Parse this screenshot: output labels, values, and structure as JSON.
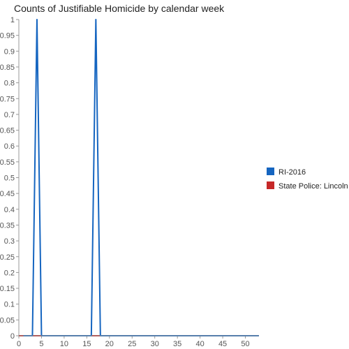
{
  "chart_data": {
    "type": "line",
    "title": "Counts of Justifiable Homicide by calendar week",
    "xlabel": "",
    "ylabel": "",
    "xlim": [
      0,
      53
    ],
    "ylim": [
      0,
      1
    ],
    "x_ticks": [
      0,
      5,
      10,
      15,
      20,
      25,
      30,
      35,
      40,
      45,
      50
    ],
    "y_ticks": [
      0,
      0.05,
      0.1,
      0.15,
      0.2,
      0.25,
      0.3,
      0.35,
      0.4,
      0.45,
      0.5,
      0.55,
      0.6,
      0.65,
      0.7,
      0.75,
      0.8,
      0.85,
      0.9,
      0.95,
      1
    ],
    "grid": false,
    "legend_position": "right",
    "series": [
      {
        "name": "RI-2016",
        "color": "#1565c0",
        "x": [
          1,
          2,
          3,
          4,
          5,
          6,
          7,
          8,
          9,
          10,
          11,
          12,
          13,
          14,
          15,
          16,
          17,
          18,
          19,
          20,
          21,
          22,
          23,
          24,
          25,
          26,
          27,
          28,
          29,
          30,
          31,
          32,
          33,
          34,
          35,
          36,
          37,
          38,
          39,
          40,
          41,
          42,
          43,
          44,
          45,
          46,
          47,
          48,
          49,
          50,
          51,
          52,
          53
        ],
        "values": [
          0,
          0,
          0,
          1,
          0,
          0,
          0,
          0,
          0,
          0,
          0,
          0,
          0,
          0,
          0,
          0,
          1,
          0,
          0,
          0,
          0,
          0,
          0,
          0,
          0,
          0,
          0,
          0,
          0,
          0,
          0,
          0,
          0,
          0,
          0,
          0,
          0,
          0,
          0,
          0,
          0,
          0,
          0,
          0,
          0,
          0,
          0,
          0,
          0,
          0,
          0,
          0,
          0
        ]
      },
      {
        "name": "State Police: Lincoln",
        "color": "#c62828",
        "x": [
          0,
          1,
          2,
          3,
          4,
          5,
          6,
          7,
          8,
          9,
          10,
          11,
          12,
          13,
          14,
          15,
          16,
          17,
          18,
          19,
          20,
          21,
          22,
          23,
          24,
          25,
          26,
          27,
          28,
          29,
          30,
          31,
          32,
          33,
          34,
          35,
          36,
          37,
          38,
          39,
          40,
          41,
          42,
          43,
          44,
          45,
          46,
          47,
          48,
          49,
          50,
          51,
          52,
          53
        ],
        "values": [
          0,
          0,
          0,
          0,
          0,
          0,
          0,
          0,
          0,
          0,
          0,
          0,
          0,
          0,
          0,
          0,
          0,
          0,
          0,
          0,
          0,
          0,
          0,
          0,
          0,
          0,
          0,
          0,
          0,
          0,
          0,
          0,
          0,
          0,
          0,
          0,
          0,
          0,
          0,
          0,
          0,
          0,
          0,
          0,
          0,
          0,
          0,
          0,
          0,
          0,
          0,
          0,
          0,
          0
        ]
      }
    ]
  }
}
